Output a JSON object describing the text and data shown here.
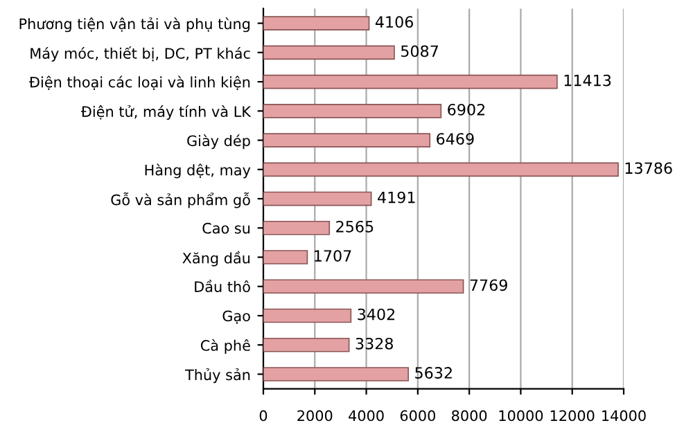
{
  "chart_data": {
    "type": "bar",
    "orientation": "horizontal",
    "categories": [
      "Phương tiện vận tải và phụ tùng",
      "Máy móc, thiết bị, DC, PT khác",
      "Điện thoại các loại và linh kiện",
      "Điện tử, máy tính và LK",
      "Giày dép",
      "Hàng dệt, may",
      "Gỗ và sản phẩm gỗ",
      "Cao su",
      "Xăng dầu",
      "Dầu thô",
      "Gạo",
      "Cà phê",
      "Thủy sản"
    ],
    "values": [
      4106,
      5087,
      11413,
      6902,
      6469,
      13786,
      4191,
      2565,
      1707,
      7769,
      3402,
      3328,
      5632
    ],
    "color": "#e3a1a3",
    "data_labels": true,
    "grid": "x",
    "xlim": [
      0,
      14000
    ],
    "xticks": [
      0,
      2000,
      4000,
      6000,
      8000,
      10000,
      12000,
      14000
    ]
  }
}
